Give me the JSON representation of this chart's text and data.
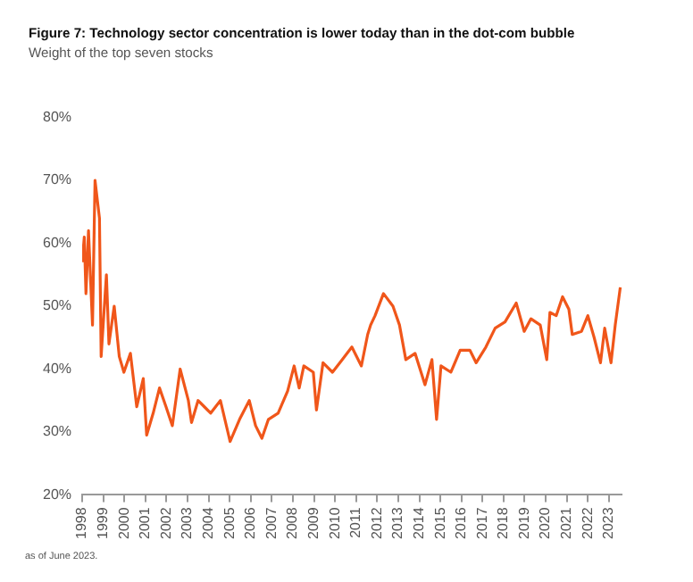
{
  "chart_data": {
    "type": "line",
    "title": "Figure 7: Technology sector concentration is lower today than in the dot-com bubble",
    "subtitle": "Weight of the top seven stocks",
    "annotations": [
      "as of June 2023."
    ],
    "x": [
      1998.0,
      1998.1,
      1998.18,
      1998.3,
      1998.49,
      1998.61,
      1998.82,
      1998.9,
      1999.15,
      1999.27,
      1999.52,
      1999.76,
      1999.98,
      2000.29,
      2000.59,
      2000.9,
      2001.06,
      2001.37,
      2001.67,
      2001.98,
      2002.28,
      2002.65,
      2003.04,
      2003.19,
      2003.5,
      2003.8,
      2004.1,
      2004.56,
      2005.02,
      2005.47,
      2005.93,
      2006.23,
      2006.53,
      2006.84,
      2007.3,
      2007.75,
      2008.06,
      2008.3,
      2008.52,
      2008.97,
      2009.12,
      2009.43,
      2009.88,
      2010.34,
      2010.8,
      2011.25,
      2011.55,
      2011.69,
      2011.9,
      2012.3,
      2012.75,
      2013.06,
      2013.36,
      2013.8,
      2014.27,
      2014.6,
      2014.82,
      2015.03,
      2015.5,
      2015.94,
      2016.4,
      2016.7,
      2017.16,
      2017.6,
      2018.07,
      2018.6,
      2018.98,
      2019.3,
      2019.74,
      2020.05,
      2020.2,
      2020.5,
      2020.8,
      2021.1,
      2021.26,
      2021.7,
      2022.0,
      2022.3,
      2022.6,
      2022.8,
      2023.1,
      2023.3,
      2023.54
    ],
    "series": [
      {
        "color": "#f0561a",
        "values": [
          57,
          61,
          52,
          62,
          47,
          70,
          64,
          42,
          55,
          44,
          50,
          42,
          39.5,
          42.5,
          34,
          38.5,
          29.5,
          33,
          37,
          34,
          31,
          40,
          35,
          31.5,
          35,
          34,
          33,
          35,
          28.5,
          32,
          35,
          31,
          29,
          32,
          33,
          36.5,
          40.5,
          37,
          40.5,
          39.5,
          33.5,
          41,
          39.5,
          41.5,
          43.5,
          40.5,
          45.5,
          47,
          48.5,
          52,
          50,
          47,
          41.5,
          42.5,
          37.5,
          41.5,
          32,
          40.5,
          39.5,
          43,
          43,
          41,
          43.5,
          46.5,
          47.5,
          50.5,
          46,
          48,
          47,
          41.5,
          49,
          48.5,
          51.5,
          49.5,
          45.5,
          46,
          48.5,
          45,
          41,
          46.5,
          41,
          47,
          53
        ]
      }
    ],
    "xlim": [
      1998,
      2023.6
    ],
    "xticks": [
      1998,
      1999,
      2000,
      2001,
      2002,
      2003,
      2004,
      2005,
      2006,
      2007,
      2008,
      2009,
      2010,
      2011,
      2012,
      2013,
      2014,
      2015,
      2016,
      2017,
      2018,
      2019,
      2020,
      2021,
      2022,
      2023
    ],
    "ylim": [
      20,
      80
    ],
    "yticks": [
      {
        "value": 20,
        "label": "20%"
      },
      {
        "value": 30,
        "label": "30%"
      },
      {
        "value": 40,
        "label": "40%"
      },
      {
        "value": 50,
        "label": "50%"
      },
      {
        "value": 60,
        "label": "60%"
      },
      {
        "value": 70,
        "label": "70%"
      },
      {
        "value": 80,
        "label": "80%"
      }
    ],
    "grid": false,
    "legend": false,
    "marker": "none",
    "line_style": "solid"
  }
}
